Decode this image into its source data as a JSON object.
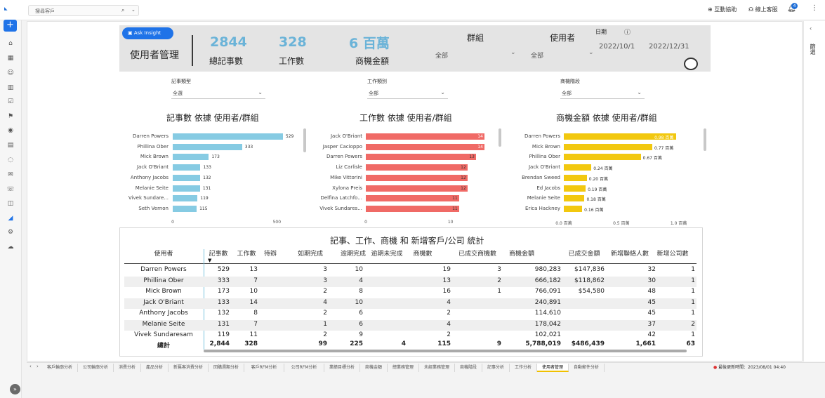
{
  "topbar": {
    "logo": "",
    "search_value": "搜尋客戶",
    "links": [
      "互動協助",
      "線上客服"
    ],
    "bell_count": "4"
  },
  "sidebar": {
    "plus": "+"
  },
  "rightpanel": {
    "filter_label": "篩選"
  },
  "header": {
    "ask_insight": "Ask Insight",
    "title": "使用者管理",
    "kpis": [
      {
        "value": "2844",
        "label": "總記事數"
      },
      {
        "value": "328",
        "label": "工作數"
      },
      {
        "value": "6 百萬",
        "label": "商機金額"
      }
    ],
    "group_label": "群組",
    "group_value": "全部",
    "user_label": "使用者",
    "user_value": "全部",
    "date_label": "日期",
    "date_start": "2022/10/1",
    "date_end": "2022/12/31"
  },
  "slicers": [
    {
      "label": "記事類型",
      "value": "全選"
    },
    {
      "label": "工作類別",
      "value": "全部"
    },
    {
      "label": "商機階段",
      "value": "全部"
    }
  ],
  "colors": {
    "blue": "#86cbe3",
    "red": "#f06a66",
    "yellow": "#f2c80f",
    "accent": "#1f73e8"
  },
  "chart_data": [
    {
      "type": "bar",
      "orientation": "horizontal",
      "title": "記事數 依據 使用者/群組",
      "categories": [
        "Darren Powers",
        "Phillina Ober",
        "Mick Brown",
        "Jack O'Briant",
        "Anthony Jacobs",
        "Melanie Seite",
        "Vivek Sundare...",
        "Seth Vernon"
      ],
      "values": [
        529,
        333,
        173,
        133,
        132,
        131,
        119,
        115
      ],
      "value_labels": [
        "529",
        "333",
        "173",
        "133",
        "132",
        "131",
        "119",
        "115"
      ],
      "xlim": [
        0,
        590
      ],
      "ticks": [
        {
          "v": 0,
          "label": "0"
        },
        {
          "v": 500,
          "label": "500"
        }
      ]
    },
    {
      "type": "bar",
      "orientation": "horizontal",
      "title": "工作數 依據 使用者/群組",
      "categories": [
        "Jack O'Briant",
        "Jasper Cacioppo",
        "Darren Powers",
        "Liz Carlisle",
        "Mike Vittorini",
        "Xylona Preis",
        "Delfina Latchfo...",
        "Vivek Sundares..."
      ],
      "values": [
        14,
        14,
        13,
        12,
        12,
        12,
        11,
        11
      ],
      "value_labels": [
        "14",
        "14",
        "13",
        "12",
        "12",
        "12",
        "11",
        "11"
      ],
      "xlim": [
        0,
        15
      ],
      "ticks": [
        {
          "v": 0,
          "label": "0"
        },
        {
          "v": 10,
          "label": "10"
        }
      ]
    },
    {
      "type": "bar",
      "orientation": "horizontal",
      "title": "商機金額 依據 使用者/群組",
      "categories": [
        "Darren Powers",
        "Mick Brown",
        "Phillina Ober",
        "Jack O'Briant",
        "Brendan Sweed",
        "Ed Jacobs",
        "Melanie Seite",
        "Erica Hackney"
      ],
      "values": [
        0.98,
        0.77,
        0.67,
        0.24,
        0.2,
        0.19,
        0.18,
        0.16
      ],
      "value_labels": [
        "0.98 百萬",
        "0.77 百萬",
        "0.67 百萬",
        "0.24 百萬",
        "0.20 百萬",
        "0.19 百萬",
        "0.18 百萬",
        "0.16 百萬"
      ],
      "xlim": [
        0,
        1.1
      ],
      "ticks": [
        {
          "v": 0,
          "label": "0.0 百萬"
        },
        {
          "v": 0.5,
          "label": "0.5 百萬"
        },
        {
          "v": 1.0,
          "label": "1.0 百萬"
        }
      ]
    }
  ],
  "table": {
    "title": "記事、工作、商機 和 新增客戶/公司  統計",
    "columns": [
      "使用者",
      "記事數",
      "工作數",
      "待辦",
      "如期完成",
      "逾期完成",
      "逾期未完成",
      "商機數",
      "已成交商機數",
      "商機金額",
      "已成交金額",
      "新增聯絡人數",
      "新增公司數"
    ],
    "sort_indicator": "▼",
    "rows": [
      [
        "Darren Powers",
        "529",
        "13",
        "",
        "3",
        "10",
        "",
        "19",
        "3",
        "980,283",
        "$147,836",
        "32",
        "1"
      ],
      [
        "Phillina Ober",
        "333",
        "7",
        "",
        "3",
        "4",
        "",
        "13",
        "2",
        "666,182",
        "$118,862",
        "30",
        "1"
      ],
      [
        "Mick Brown",
        "173",
        "10",
        "",
        "2",
        "8",
        "",
        "16",
        "1",
        "766,091",
        "$54,580",
        "48",
        "1"
      ],
      [
        "Jack O'Briant",
        "133",
        "14",
        "",
        "4",
        "10",
        "",
        "4",
        "",
        "240,891",
        "",
        "45",
        "1"
      ],
      [
        "Anthony Jacobs",
        "132",
        "8",
        "",
        "2",
        "6",
        "",
        "2",
        "",
        "114,610",
        "",
        "45",
        "1"
      ],
      [
        "Melanie Seite",
        "131",
        "7",
        "",
        "1",
        "6",
        "",
        "4",
        "",
        "178,042",
        "",
        "37",
        "2"
      ],
      [
        "Vivek Sundaresam",
        "119",
        "11",
        "",
        "2",
        "9",
        "",
        "2",
        "",
        "102,021",
        "",
        "42",
        "1"
      ]
    ],
    "total": [
      "總計",
      "2,844",
      "328",
      "",
      "99",
      "225",
      "4",
      "115",
      "9",
      "5,788,019",
      "$486,439",
      "1,661",
      "63"
    ]
  },
  "tabs": {
    "items": [
      "客戶輪廓分析",
      "公司輪廓分析",
      "消費分析",
      "產品分析",
      "新舊客消費分析",
      "回購週期分析",
      "客戶RFM分析",
      "公司RFM分析",
      "業績目標分析",
      "商機金額",
      "總業務管理",
      "未經業務管理",
      "商機階段",
      "記事分析",
      "工作分析",
      "使用者管理",
      "自動郵件分析"
    ],
    "active": "使用者管理",
    "refresh_text": "最後更新時間：2023/08/01 04:40"
  }
}
